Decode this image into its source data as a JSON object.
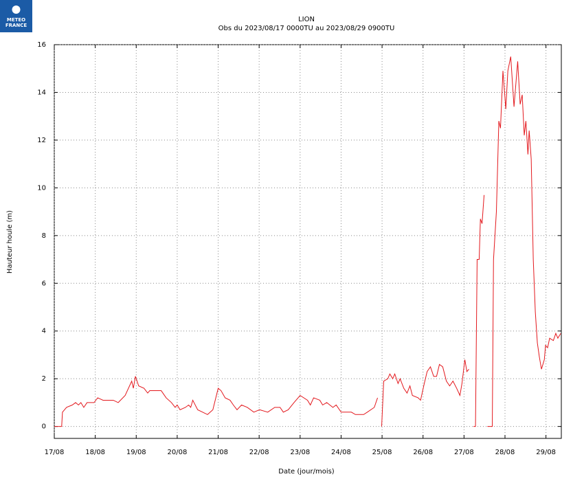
{
  "logo": {
    "lines": [
      "METEO",
      "FRANCE"
    ]
  },
  "chart_data": {
    "type": "line",
    "title": "LION",
    "subtitle": "Obs du 2023/08/17 0000TU au 2023/08/29 0900TU",
    "ylabel": "Hauteur houle (m)",
    "xlabel": "Date (jour/mois)",
    "xlim": [
      17,
      29.375
    ],
    "ylim": [
      -0.5,
      16
    ],
    "yticks": [
      0,
      2,
      4,
      6,
      8,
      10,
      12,
      14,
      16
    ],
    "xticks": [
      {
        "value": 17,
        "label": "17/08"
      },
      {
        "value": 18,
        "label": "18/08"
      },
      {
        "value": 19,
        "label": "19/08"
      },
      {
        "value": 20,
        "label": "20/08"
      },
      {
        "value": 21,
        "label": "21/08"
      },
      {
        "value": 22,
        "label": "22/08"
      },
      {
        "value": 23,
        "label": "23/08"
      },
      {
        "value": 24,
        "label": "24/08"
      },
      {
        "value": 25,
        "label": "25/08"
      },
      {
        "value": 26,
        "label": "26/08"
      },
      {
        "value": 27,
        "label": "27/08"
      },
      {
        "value": 28,
        "label": "28/08"
      },
      {
        "value": 29,
        "label": "29/08"
      }
    ],
    "grid": true,
    "x": [
      17.0,
      17.18,
      17.2,
      17.3,
      17.44,
      17.52,
      17.59,
      17.65,
      17.72,
      17.8,
      17.97,
      18.06,
      18.19,
      18.44,
      18.56,
      18.73,
      18.89,
      18.93,
      18.98,
      19.06,
      19.19,
      19.28,
      19.33,
      19.61,
      19.73,
      19.86,
      19.95,
      20.0,
      20.07,
      20.2,
      20.28,
      20.33,
      20.38,
      20.5,
      20.62,
      20.74,
      20.87,
      21.0,
      21.07,
      21.17,
      21.29,
      21.37,
      21.46,
      21.57,
      21.71,
      21.87,
      22.01,
      22.21,
      22.38,
      22.51,
      22.59,
      22.71,
      22.85,
      23.0,
      23.18,
      23.25,
      23.33,
      23.48,
      23.55,
      23.65,
      23.8,
      23.88,
      24.0,
      24.25,
      24.35,
      24.55,
      24.64,
      24.81,
      24.89,
      24.94,
      24.99,
      25.04,
      25.14,
      25.19,
      25.26,
      25.31,
      25.39,
      25.44,
      25.53,
      25.61,
      25.68,
      25.74,
      25.88,
      25.94,
      26.03,
      26.1,
      26.18,
      26.26,
      26.33,
      26.4,
      26.48,
      26.57,
      26.65,
      26.73,
      26.82,
      26.9,
      26.95,
      27.02,
      27.07,
      27.12,
      27.15,
      27.23,
      27.28,
      27.32,
      27.37,
      27.4,
      27.44,
      27.49,
      27.53,
      27.57,
      27.69,
      27.72,
      27.79,
      27.85,
      27.89,
      27.95,
      28.02,
      28.07,
      28.14,
      28.22,
      28.31,
      28.37,
      28.42,
      28.47,
      28.51,
      28.56,
      28.59,
      28.64,
      28.69,
      28.74,
      28.79,
      28.84,
      28.89,
      28.96,
      28.99,
      29.04,
      29.09,
      29.18,
      29.24,
      29.29,
      29.36
    ],
    "series": [
      {
        "name": "LION",
        "color": "#e3171c",
        "values": [
          0,
          0,
          0.6,
          0.8,
          0.9,
          1.0,
          0.9,
          1.0,
          0.8,
          1.0,
          1.0,
          1.2,
          1.1,
          1.1,
          1.0,
          1.3,
          1.9,
          1.6,
          2.1,
          1.7,
          1.6,
          1.4,
          1.5,
          1.5,
          1.2,
          1.0,
          0.8,
          0.9,
          0.7,
          0.8,
          0.9,
          0.8,
          1.1,
          0.7,
          0.6,
          0.5,
          0.7,
          1.6,
          1.5,
          1.2,
          1.1,
          0.9,
          0.7,
          0.9,
          0.8,
          0.6,
          0.7,
          0.6,
          0.8,
          0.8,
          0.6,
          0.7,
          1.0,
          1.3,
          1.1,
          0.9,
          1.2,
          1.1,
          0.9,
          1.0,
          0.8,
          0.9,
          0.6,
          0.6,
          0.5,
          0.5,
          0.6,
          0.8,
          1.2,
          null,
          0,
          1.9,
          2.0,
          2.2,
          2.0,
          2.2,
          1.8,
          2.0,
          1.6,
          1.4,
          1.7,
          1.3,
          1.2,
          1.1,
          1.8,
          2.3,
          2.5,
          2.1,
          2.1,
          2.6,
          2.5,
          1.9,
          1.7,
          1.9,
          1.6,
          1.3,
          1.8,
          2.8,
          2.3,
          2.4,
          null,
          0,
          0,
          7.0,
          7.0,
          8.7,
          8.5,
          9.7,
          null,
          0,
          0,
          7.0,
          9.0,
          12.8,
          12.5,
          14.9,
          13.3,
          14.9,
          15.5,
          13.4,
          15.3,
          13.5,
          13.9,
          12.2,
          12.8,
          11.4,
          12.4,
          11.2,
          7.0,
          4.8,
          3.5,
          2.9,
          2.4,
          2.8,
          3.4,
          3.3,
          3.7,
          3.6,
          3.9,
          3.7,
          3.9
        ]
      }
    ]
  }
}
